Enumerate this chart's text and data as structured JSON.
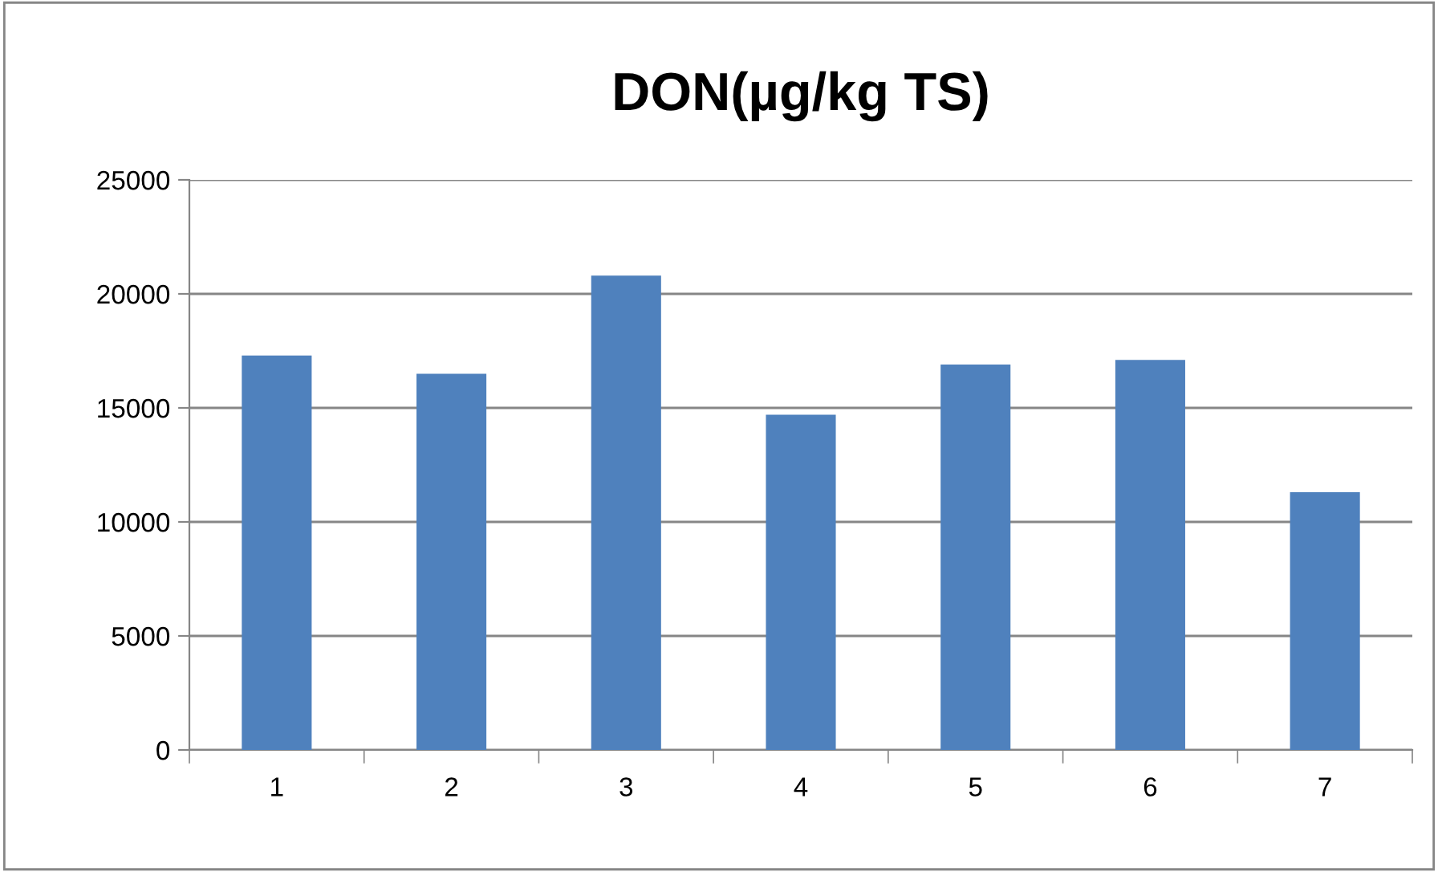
{
  "chart_data": {
    "type": "bar",
    "title": "DON(µg/kg TS)",
    "categories": [
      "1",
      "2",
      "3",
      "4",
      "5",
      "6",
      "7"
    ],
    "values": [
      17300,
      16500,
      20800,
      14700,
      16900,
      17100,
      11300
    ],
    "color": "#4f81bd",
    "ylim": [
      0,
      25000
    ],
    "yticks": [
      0,
      5000,
      10000,
      15000,
      20000,
      25000
    ],
    "grid": "y",
    "legend": false
  }
}
